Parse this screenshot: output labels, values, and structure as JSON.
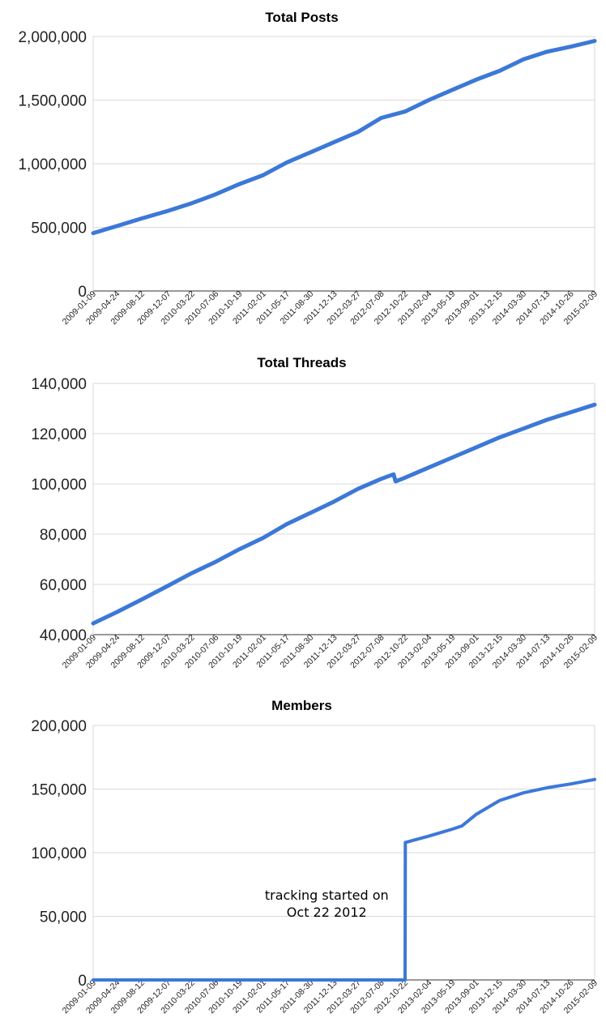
{
  "chart_data": [
    {
      "type": "line",
      "title": "Total Posts",
      "xlabel": "",
      "ylabel": "",
      "ylim": [
        0,
        2000000
      ],
      "y_ticks": [
        {
          "value": 0,
          "label": "0"
        },
        {
          "value": 500000,
          "label": "500,000"
        },
        {
          "value": 1000000,
          "label": "1,000,000"
        },
        {
          "value": 1500000,
          "label": "1,500,000"
        },
        {
          "value": 2000000,
          "label": "2,000,000"
        }
      ],
      "x_tick_labels": [
        "2009-01-09",
        "2009-04-24",
        "2009-08-12",
        "2009-12-07",
        "2010-03-22",
        "2010-07-06",
        "2010-10-19",
        "2011-02-01",
        "2011-05-17",
        "2011-08-30",
        "2011-12-13",
        "2012-03-27",
        "2012-07-08",
        "2012-10-22",
        "2013-02-04",
        "2013-05-19",
        "2013-09-01",
        "2013-12-15",
        "2014-03-30",
        "2014-07-13",
        "2014-10-26",
        "2015-02-09"
      ],
      "grid": true,
      "color": "#3c78d8",
      "series": [
        {
          "name": "",
          "x": [
            "2009-01-09",
            "2009-04-24",
            "2009-08-12",
            "2009-12-07",
            "2010-03-22",
            "2010-07-06",
            "2010-10-19",
            "2011-02-01",
            "2011-05-17",
            "2011-08-30",
            "2011-12-13",
            "2012-03-27",
            "2012-07-08",
            "2012-10-22",
            "2013-02-04",
            "2013-05-19",
            "2013-09-01",
            "2013-12-15",
            "2014-03-30",
            "2014-07-13",
            "2014-10-26",
            "2015-02-09"
          ],
          "values": [
            455000,
            510000,
            570000,
            630000,
            690000,
            760000,
            840000,
            910000,
            1010000,
            1090000,
            1170000,
            1250000,
            1360000,
            1410000,
            1500000,
            1580000,
            1660000,
            1730000,
            1820000,
            1880000,
            1920000,
            1965000
          ]
        }
      ]
    },
    {
      "type": "line",
      "title": "Total Threads",
      "xlabel": "",
      "ylabel": "",
      "ylim": [
        40000,
        140000
      ],
      "y_ticks": [
        {
          "value": 40000,
          "label": "40,000"
        },
        {
          "value": 60000,
          "label": "60,000"
        },
        {
          "value": 80000,
          "label": "80,000"
        },
        {
          "value": 100000,
          "label": "100,000"
        },
        {
          "value": 120000,
          "label": "120,000"
        },
        {
          "value": 140000,
          "label": "140,000"
        }
      ],
      "x_tick_labels": [
        "2009-01-09",
        "2009-04-24",
        "2009-08-12",
        "2009-12-07",
        "2010-03-22",
        "2010-07-06",
        "2010-10-19",
        "2011-02-01",
        "2011-05-17",
        "2011-08-30",
        "2011-12-13",
        "2012-03-27",
        "2012-07-08",
        "2012-10-22",
        "2013-02-04",
        "2013-05-19",
        "2013-09-01",
        "2013-12-15",
        "2014-03-30",
        "2014-07-13",
        "2014-10-26",
        "2015-02-09"
      ],
      "grid": true,
      "color": "#3c78d8",
      "series": [
        {
          "name": "",
          "x": [
            "2009-01-09",
            "2009-04-24",
            "2009-08-12",
            "2009-12-07",
            "2010-03-22",
            "2010-07-06",
            "2010-10-19",
            "2011-02-01",
            "2011-05-17",
            "2011-08-30",
            "2011-12-13",
            "2012-03-27",
            "2012-07-08",
            "2012-09-01",
            "2012-09-10",
            "2012-10-22",
            "2013-02-04",
            "2013-05-19",
            "2013-09-01",
            "2013-12-15",
            "2014-03-30",
            "2014-07-13",
            "2014-10-26",
            "2015-02-09"
          ],
          "values": [
            44500,
            49000,
            54000,
            59500,
            64500,
            69000,
            74000,
            78500,
            84000,
            88500,
            93000,
            98000,
            102000,
            103800,
            101000,
            102500,
            106500,
            110500,
            114500,
            118500,
            122000,
            125500,
            128500,
            131500
          ]
        }
      ]
    },
    {
      "type": "line",
      "title": "Members",
      "xlabel": "",
      "ylabel": "",
      "ylim": [
        0,
        200000
      ],
      "y_ticks": [
        {
          "value": 0,
          "label": "0"
        },
        {
          "value": 50000,
          "label": "50,000"
        },
        {
          "value": 100000,
          "label": "100,000"
        },
        {
          "value": 150000,
          "label": "150,000"
        },
        {
          "value": 200000,
          "label": "200,000"
        }
      ],
      "x_tick_labels": [
        "2009-01-09",
        "2009-04-24",
        "2009-08-12",
        "2009-12-07",
        "2010-03-22",
        "2010-07-06",
        "2010-10-19",
        "2011-02-01",
        "2011-05-17",
        "2011-08-30",
        "2011-12-13",
        "2012-03-27",
        "2012-07-08",
        "2012-10-22",
        "2013-02-04",
        "2013-05-19",
        "2013-09-01",
        "2013-12-15",
        "2014-03-30",
        "2014-07-13",
        "2014-10-26",
        "2015-02-09"
      ],
      "grid": true,
      "color": "#3c78d8",
      "annotation": {
        "lines": [
          "tracking started on",
          "Oct 22 2012"
        ],
        "x": "2011-08-30",
        "y": 63000
      },
      "series": [
        {
          "name": "",
          "x": [
            "2009-01-09",
            "2012-10-22",
            "2012-10-23",
            "2013-02-04",
            "2013-05-19",
            "2013-07-01",
            "2013-09-01",
            "2013-12-15",
            "2014-03-30",
            "2014-07-13",
            "2014-10-26",
            "2015-02-09"
          ],
          "values": [
            0,
            0,
            108000,
            113000,
            118500,
            121000,
            130000,
            141000,
            147000,
            151000,
            154000,
            157500
          ]
        }
      ]
    }
  ]
}
